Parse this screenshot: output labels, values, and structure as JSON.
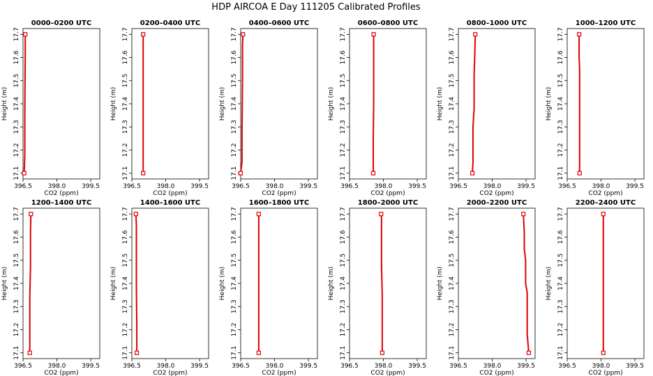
{
  "figure": {
    "title": "HDP AIRCOA E  Day 111205  Calibrated Profiles"
  },
  "colors": {
    "profile": "#dd0000",
    "frame": "#000000",
    "background": "#ffffff"
  },
  "chart_data": [
    {
      "type": "line",
      "title": "0000–0200 UTC",
      "xlabel": "CO2 (ppm)",
      "ylabel": "Height (m)",
      "xlim": [
        396.5,
        399.9
      ],
      "ylim": [
        17.075,
        17.725
      ],
      "xticks": [
        396.5,
        398.0,
        399.5
      ],
      "xtick_labels": [
        "396.5",
        "398.0",
        "399.5"
      ],
      "yticks": [
        17.1,
        17.2,
        17.3,
        17.4,
        17.5,
        17.6,
        17.7
      ],
      "ytick_labels": [
        "17.1",
        "17.2",
        "17.3",
        "17.4",
        "17.5",
        "17.6",
        "17.7"
      ],
      "series": [
        {
          "x": [
            396.55,
            396.58,
            396.58,
            396.6,
            396.6
          ],
          "y": [
            17.1,
            17.18,
            17.35,
            17.63,
            17.7
          ]
        }
      ],
      "endpoints": [
        {
          "x": 396.55,
          "y": 17.1
        },
        {
          "x": 396.6,
          "y": 17.7
        }
      ]
    },
    {
      "type": "line",
      "title": "0200–0400 UTC",
      "xlabel": "CO2 (ppm)",
      "ylabel": "Height (m)",
      "xlim": [
        396.5,
        399.9
      ],
      "ylim": [
        17.075,
        17.725
      ],
      "xticks": [
        396.5,
        398.0,
        399.5
      ],
      "xtick_labels": [
        "396.5",
        "398.0",
        "399.5"
      ],
      "yticks": [
        17.1,
        17.2,
        17.3,
        17.4,
        17.5,
        17.6,
        17.7
      ],
      "ytick_labels": [
        "17.1",
        "17.2",
        "17.3",
        "17.4",
        "17.5",
        "17.6",
        "17.7"
      ],
      "series": [
        {
          "x": [
            397.0,
            397.0,
            397.0
          ],
          "y": [
            17.1,
            17.4,
            17.7
          ]
        }
      ],
      "endpoints": [
        {
          "x": 397.0,
          "y": 17.1
        },
        {
          "x": 397.0,
          "y": 17.7
        }
      ]
    },
    {
      "type": "line",
      "title": "0400–0600 UTC",
      "xlabel": "CO2 (ppm)",
      "ylabel": "Height (m)",
      "xlim": [
        396.5,
        399.9
      ],
      "ylim": [
        17.075,
        17.725
      ],
      "xticks": [
        396.5,
        398.0,
        399.5
      ],
      "xtick_labels": [
        "396.5",
        "398.0",
        "399.5"
      ],
      "yticks": [
        17.1,
        17.2,
        17.3,
        17.4,
        17.5,
        17.6,
        17.7
      ],
      "ytick_labels": [
        "17.1",
        "17.2",
        "17.3",
        "17.4",
        "17.5",
        "17.6",
        "17.7"
      ],
      "series": [
        {
          "x": [
            396.5,
            396.56,
            396.56,
            396.58,
            396.58,
            396.6
          ],
          "y": [
            17.1,
            17.15,
            17.28,
            17.5,
            17.65,
            17.7
          ]
        }
      ],
      "endpoints": [
        {
          "x": 396.5,
          "y": 17.1
        },
        {
          "x": 396.6,
          "y": 17.7
        }
      ]
    },
    {
      "type": "line",
      "title": "0600–0800 UTC",
      "xlabel": "CO2 (ppm)",
      "ylabel": "Height (m)",
      "xlim": [
        396.5,
        399.9
      ],
      "ylim": [
        17.075,
        17.725
      ],
      "xticks": [
        396.5,
        398.0,
        399.5
      ],
      "xtick_labels": [
        "396.5",
        "398.0",
        "399.5"
      ],
      "yticks": [
        17.1,
        17.2,
        17.3,
        17.4,
        17.5,
        17.6,
        17.7
      ],
      "ytick_labels": [
        "17.1",
        "17.2",
        "17.3",
        "17.4",
        "17.5",
        "17.6",
        "17.7"
      ],
      "series": [
        {
          "x": [
            397.55,
            397.55,
            397.57,
            397.57
          ],
          "y": [
            17.1,
            17.25,
            17.4,
            17.7
          ]
        }
      ],
      "endpoints": [
        {
          "x": 397.55,
          "y": 17.1
        },
        {
          "x": 397.57,
          "y": 17.7
        }
      ]
    },
    {
      "type": "line",
      "title": "0800–1000 UTC",
      "xlabel": "CO2 (ppm)",
      "ylabel": "Height (m)",
      "xlim": [
        396.5,
        399.9
      ],
      "ylim": [
        17.075,
        17.725
      ],
      "xticks": [
        396.5,
        398.0,
        399.5
      ],
      "xtick_labels": [
        "396.5",
        "398.0",
        "399.5"
      ],
      "yticks": [
        17.1,
        17.2,
        17.3,
        17.4,
        17.5,
        17.6,
        17.7
      ],
      "ytick_labels": [
        "17.1",
        "17.2",
        "17.3",
        "17.4",
        "17.5",
        "17.6",
        "17.7"
      ],
      "series": [
        {
          "x": [
            397.12,
            397.15,
            397.15,
            397.2,
            397.2,
            397.25
          ],
          "y": [
            17.1,
            17.15,
            17.3,
            17.38,
            17.52,
            17.7
          ]
        }
      ],
      "endpoints": [
        {
          "x": 397.12,
          "y": 17.1
        },
        {
          "x": 397.25,
          "y": 17.7
        }
      ]
    },
    {
      "type": "line",
      "title": "1000–1200 UTC",
      "xlabel": "CO2 (ppm)",
      "ylabel": "Height (m)",
      "xlim": [
        396.5,
        399.9
      ],
      "ylim": [
        17.075,
        17.725
      ],
      "xticks": [
        396.5,
        398.0,
        399.5
      ],
      "xtick_labels": [
        "396.5",
        "398.0",
        "399.5"
      ],
      "yticks": [
        17.1,
        17.2,
        17.3,
        17.4,
        17.5,
        17.6,
        17.7
      ],
      "ytick_labels": [
        "17.1",
        "17.2",
        "17.3",
        "17.4",
        "17.5",
        "17.6",
        "17.7"
      ],
      "series": [
        {
          "x": [
            397.05,
            397.05,
            397.03,
            397.03
          ],
          "y": [
            17.1,
            17.55,
            17.6,
            17.7
          ]
        }
      ],
      "endpoints": [
        {
          "x": 397.05,
          "y": 17.1
        },
        {
          "x": 397.03,
          "y": 17.7
        }
      ]
    },
    {
      "type": "line",
      "title": "1200–1400 UTC",
      "xlabel": "CO2 (ppm)",
      "ylabel": "Height (m)",
      "xlim": [
        396.5,
        399.9
      ],
      "ylim": [
        17.075,
        17.725
      ],
      "xticks": [
        396.5,
        398.0,
        399.5
      ],
      "xtick_labels": [
        "396.5",
        "398.0",
        "399.5"
      ],
      "yticks": [
        17.1,
        17.2,
        17.3,
        17.4,
        17.5,
        17.6,
        17.7
      ],
      "ytick_labels": [
        "17.1",
        "17.2",
        "17.3",
        "17.4",
        "17.5",
        "17.6",
        "17.7"
      ],
      "series": [
        {
          "x": [
            396.8,
            396.8,
            396.83,
            396.83,
            396.85
          ],
          "y": [
            17.1,
            17.34,
            17.47,
            17.62,
            17.7
          ]
        }
      ],
      "endpoints": [
        {
          "x": 396.8,
          "y": 17.1
        },
        {
          "x": 396.85,
          "y": 17.7
        }
      ]
    },
    {
      "type": "line",
      "title": "1400–1600 UTC",
      "xlabel": "CO2 (ppm)",
      "ylabel": "Height (m)",
      "xlim": [
        396.5,
        399.9
      ],
      "ylim": [
        17.075,
        17.725
      ],
      "xticks": [
        396.5,
        398.0,
        399.5
      ],
      "xtick_labels": [
        "396.5",
        "398.0",
        "399.5"
      ],
      "yticks": [
        17.1,
        17.2,
        17.3,
        17.4,
        17.5,
        17.6,
        17.7
      ],
      "ytick_labels": [
        "17.1",
        "17.2",
        "17.3",
        "17.4",
        "17.5",
        "17.6",
        "17.7"
      ],
      "series": [
        {
          "x": [
            396.72,
            396.72,
            396.7,
            396.7,
            396.68
          ],
          "y": [
            17.1,
            17.22,
            17.38,
            17.65,
            17.7
          ]
        }
      ],
      "endpoints": [
        {
          "x": 396.72,
          "y": 17.1
        },
        {
          "x": 396.68,
          "y": 17.7
        }
      ]
    },
    {
      "type": "line",
      "title": "1600–1800 UTC",
      "xlabel": "CO2 (ppm)",
      "ylabel": "Height (m)",
      "xlim": [
        396.5,
        399.9
      ],
      "ylim": [
        17.075,
        17.725
      ],
      "xticks": [
        396.5,
        398.0,
        399.5
      ],
      "xtick_labels": [
        "396.5",
        "398.0",
        "399.5"
      ],
      "yticks": [
        17.1,
        17.2,
        17.3,
        17.4,
        17.5,
        17.6,
        17.7
      ],
      "ytick_labels": [
        "17.1",
        "17.2",
        "17.3",
        "17.4",
        "17.5",
        "17.6",
        "17.7"
      ],
      "series": [
        {
          "x": [
            397.3,
            397.3
          ],
          "y": [
            17.1,
            17.7
          ]
        }
      ],
      "endpoints": [
        {
          "x": 397.3,
          "y": 17.1
        },
        {
          "x": 397.3,
          "y": 17.7
        }
      ]
    },
    {
      "type": "line",
      "title": "1800–2000 UTC",
      "xlabel": "CO2 (ppm)",
      "ylabel": "Height (m)",
      "xlim": [
        396.5,
        399.9
      ],
      "ylim": [
        17.075,
        17.725
      ],
      "xticks": [
        396.5,
        398.0,
        399.5
      ],
      "xtick_labels": [
        "396.5",
        "398.0",
        "399.5"
      ],
      "yticks": [
        17.1,
        17.2,
        17.3,
        17.4,
        17.5,
        17.6,
        17.7
      ],
      "ytick_labels": [
        "17.1",
        "17.2",
        "17.3",
        "17.4",
        "17.5",
        "17.6",
        "17.7"
      ],
      "series": [
        {
          "x": [
            397.95,
            397.95,
            397.92,
            397.92,
            397.9
          ],
          "y": [
            17.1,
            17.35,
            17.47,
            17.68,
            17.7
          ]
        }
      ],
      "endpoints": [
        {
          "x": 397.95,
          "y": 17.1
        },
        {
          "x": 397.9,
          "y": 17.7
        }
      ]
    },
    {
      "type": "line",
      "title": "2000–2200 UTC",
      "xlabel": "CO2 (ppm)",
      "ylabel": "Height (m)",
      "xlim": [
        396.5,
        399.9
      ],
      "ylim": [
        17.075,
        17.725
      ],
      "xticks": [
        396.5,
        398.0,
        399.5
      ],
      "xtick_labels": [
        "396.5",
        "398.0",
        "399.5"
      ],
      "yticks": [
        17.1,
        17.2,
        17.3,
        17.4,
        17.5,
        17.6,
        17.7
      ],
      "ytick_labels": [
        "17.1",
        "17.2",
        "17.3",
        "17.4",
        "17.5",
        "17.6",
        "17.7"
      ],
      "series": [
        {
          "x": [
            399.62,
            399.55,
            399.55,
            399.48,
            399.48,
            399.42,
            399.42,
            399.38
          ],
          "y": [
            17.1,
            17.18,
            17.36,
            17.4,
            17.5,
            17.55,
            17.62,
            17.7
          ]
        }
      ],
      "endpoints": [
        {
          "x": 399.62,
          "y": 17.1
        },
        {
          "x": 399.38,
          "y": 17.7
        }
      ]
    },
    {
      "type": "line",
      "title": "2200–2400 UTC",
      "xlabel": "CO2 (ppm)",
      "ylabel": "Height (m)",
      "xlim": [
        396.5,
        399.9
      ],
      "ylim": [
        17.075,
        17.725
      ],
      "xticks": [
        396.5,
        398.0,
        399.5
      ],
      "xtick_labels": [
        "396.5",
        "398.0",
        "399.5"
      ],
      "yticks": [
        17.1,
        17.2,
        17.3,
        17.4,
        17.5,
        17.6,
        17.7
      ],
      "ytick_labels": [
        "17.1",
        "17.2",
        "17.3",
        "17.4",
        "17.5",
        "17.6",
        "17.7"
      ],
      "series": [
        {
          "x": [
            398.1,
            398.1
          ],
          "y": [
            17.1,
            17.7
          ]
        }
      ],
      "endpoints": [
        {
          "x": 398.1,
          "y": 17.1
        },
        {
          "x": 398.1,
          "y": 17.7
        }
      ]
    }
  ]
}
